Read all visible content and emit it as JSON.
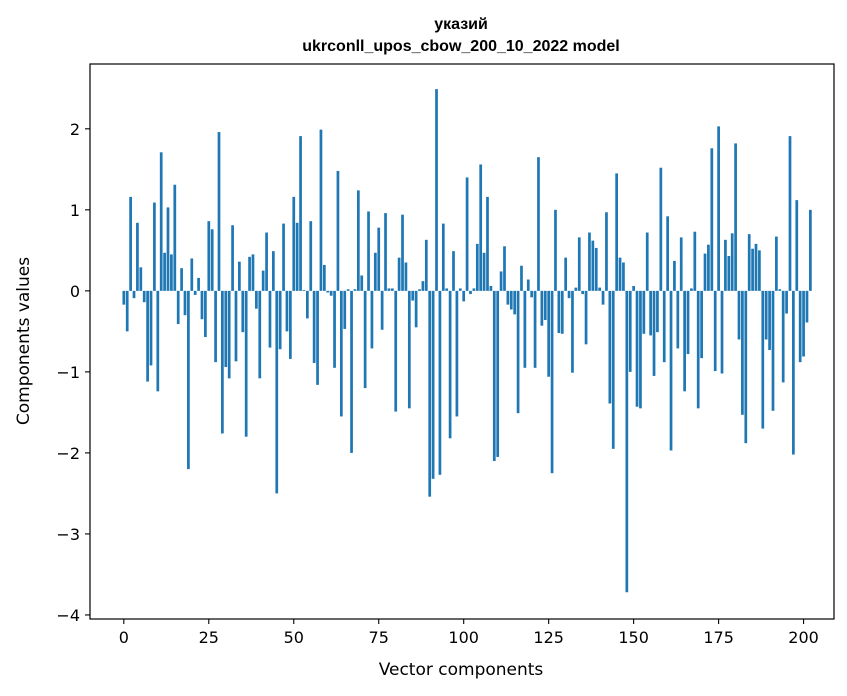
{
  "chart_data": {
    "type": "bar",
    "title": "указий",
    "subtitle": "ukrconll_upos_cbow_200_10_2022 model",
    "xlabel": "Vector components",
    "ylabel": "Components values",
    "xlim": [
      -9.95,
      208.95
    ],
    "ylim": [
      -4.05,
      2.8
    ],
    "xticks": [
      0,
      25,
      50,
      75,
      100,
      125,
      150,
      175,
      200
    ],
    "yticks": [
      -4,
      -3,
      -2,
      -1,
      0,
      1,
      2
    ],
    "xtick_labels": [
      "0",
      "25",
      "50",
      "75",
      "100",
      "125",
      "150",
      "175",
      "200"
    ],
    "ytick_labels": [
      "−4",
      "−3",
      "−2",
      "−1",
      "0",
      "1",
      "2"
    ],
    "bar_color": "#1f77b4",
    "values": [
      -0.17,
      -0.5,
      1.16,
      -0.09,
      0.84,
      0.29,
      -0.14,
      -1.12,
      -0.92,
      1.09,
      -1.24,
      1.71,
      0.47,
      1.03,
      0.45,
      1.31,
      -0.41,
      0.28,
      -0.3,
      -2.2,
      0.4,
      -0.05,
      0.16,
      -0.35,
      -0.57,
      0.86,
      0.76,
      -0.88,
      1.96,
      -1.76,
      -0.94,
      -1.08,
      0.81,
      -0.87,
      0.36,
      -0.51,
      -1.8,
      0.42,
      0.45,
      -0.22,
      -1.08,
      0.25,
      0.72,
      -0.7,
      0.49,
      -2.5,
      -0.72,
      0.83,
      -0.5,
      -0.84,
      1.16,
      0.84,
      1.91,
      0.01,
      -0.34,
      0.86,
      -0.89,
      -1.16,
      1.99,
      0.32,
      -0.02,
      -0.06,
      -0.95,
      1.48,
      -1.55,
      -0.47,
      0.02,
      -2.0,
      0.02,
      1.24,
      0.19,
      -1.2,
      0.98,
      -0.71,
      0.47,
      0.78,
      -0.48,
      0.96,
      0.03,
      0.03,
      -1.49,
      0.41,
      0.94,
      0.35,
      -1.45,
      -0.12,
      -0.45,
      0.02,
      0.12,
      0.63,
      -2.54,
      -2.32,
      2.49,
      -2.27,
      0.83,
      0.03,
      -1.82,
      0.49,
      -1.55,
      0.03,
      -0.13,
      1.4,
      -0.04,
      0.03,
      0.58,
      1.56,
      0.47,
      1.16,
      0.06,
      -2.1,
      -2.05,
      0.24,
      0.55,
      -0.17,
      -0.23,
      -0.29,
      -1.51,
      0.31,
      -0.95,
      0.14,
      -0.08,
      -0.95,
      1.65,
      -0.43,
      -0.36,
      -1.06,
      -2.25,
      1.0,
      -0.52,
      -0.53,
      0.41,
      -0.09,
      -1.01,
      0.04,
      0.66,
      -0.04,
      -0.66,
      0.72,
      0.62,
      0.53,
      0.04,
      -0.17,
      0.97,
      -1.39,
      -1.95,
      1.45,
      0.41,
      0.35,
      -3.72,
      -1.0,
      0.06,
      -1.43,
      -1.45,
      -0.53,
      0.72,
      -0.55,
      -1.05,
      -0.51,
      1.52,
      -0.88,
      0.92,
      -1.97,
      0.37,
      -0.71,
      0.66,
      -1.24,
      -0.78,
      0.03,
      0.73,
      -1.45,
      -0.83,
      0.46,
      0.57,
      1.76,
      -0.99,
      2.03,
      -1.02,
      0.63,
      0.43,
      0.71,
      1.82,
      -0.6,
      -1.53,
      -1.88,
      0.7,
      0.52,
      0.58,
      0.5,
      -1.7,
      -0.6,
      -0.73,
      -1.48,
      0.67,
      0.02,
      -1.13,
      -0.28,
      1.91,
      -2.02,
      1.12,
      -0.88,
      -0.81,
      -0.39,
      1.0
    ]
  }
}
